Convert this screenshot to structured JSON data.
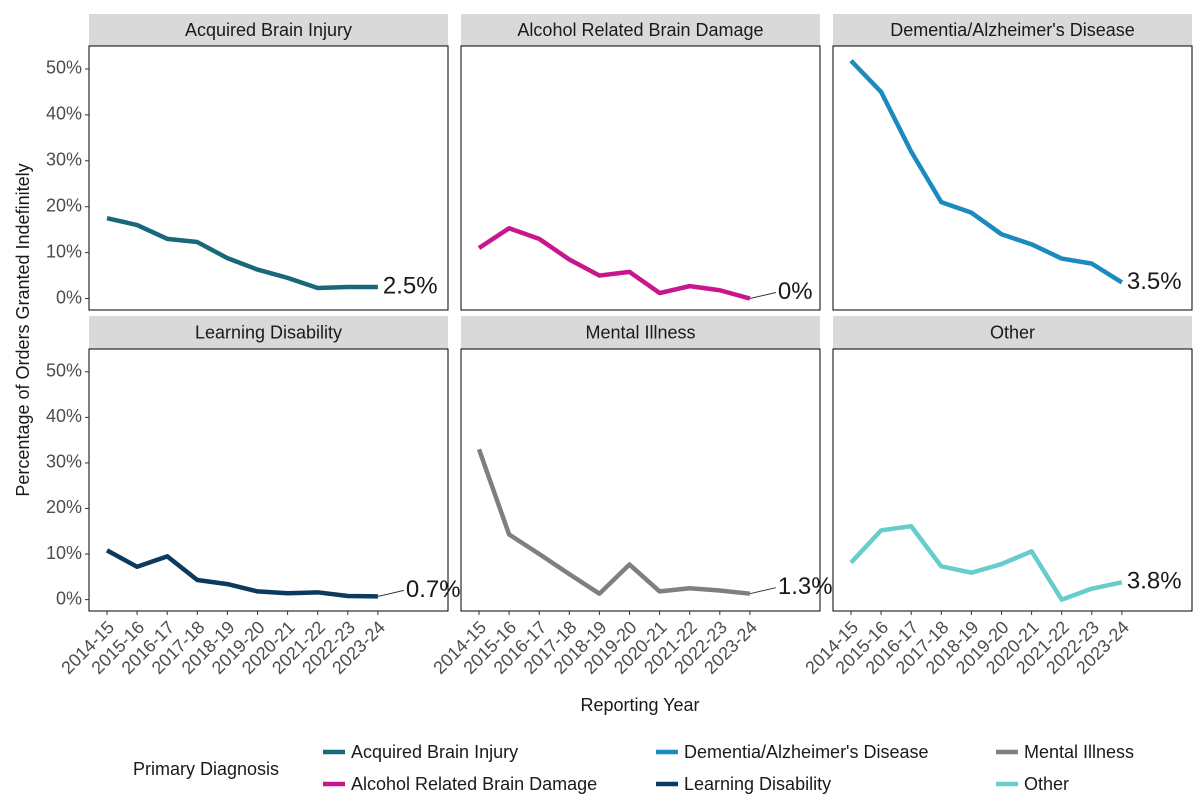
{
  "chart_data": {
    "type": "line",
    "x_label": "Reporting Year",
    "y_label": "Percentage of Orders Granted Indefinitely",
    "legend_title": "Primary Diagnosis",
    "categories": [
      "2014-15",
      "2015-16",
      "2016-17",
      "2017-18",
      "2018-19",
      "2019-20",
      "2020-21",
      "2021-22",
      "2022-23",
      "2023-24"
    ],
    "ylim": [
      -2.5,
      55
    ],
    "yticks": [
      {
        "value": 0,
        "label": "0%"
      },
      {
        "value": 10,
        "label": "10%"
      },
      {
        "value": 20,
        "label": "20%"
      },
      {
        "value": 30,
        "label": "30%"
      },
      {
        "value": 40,
        "label": "40%"
      },
      {
        "value": 50,
        "label": "50%"
      }
    ],
    "series": [
      {
        "name": "Acquired Brain Injury",
        "color": "#17697a",
        "values": [
          17.5,
          16,
          13,
          12.3,
          8.8,
          6.3,
          4.5,
          2.3,
          2.5,
          2.5
        ],
        "end_label": "2.5%"
      },
      {
        "name": "Alcohol Related Brain Damage",
        "color": "#c8168c",
        "values": [
          11,
          15.3,
          13,
          8.5,
          5,
          5.8,
          1.2,
          2.7,
          1.8,
          0
        ],
        "end_label": "0%"
      },
      {
        "name": "Dementia/Alzheimer's Disease",
        "color": "#1a8abf",
        "values": [
          51.8,
          45,
          32,
          21,
          18.7,
          14,
          11.8,
          8.7,
          7.6,
          3.5
        ],
        "end_label": "3.5%"
      },
      {
        "name": "Learning Disability",
        "color": "#0c3a5e",
        "values": [
          10.8,
          7.2,
          9.5,
          4.3,
          3.4,
          1.8,
          1.4,
          1.6,
          0.8,
          0.7
        ],
        "end_label": "0.7%"
      },
      {
        "name": "Mental Illness",
        "color": "#7f7f7f",
        "values": [
          33,
          14.3,
          10,
          5.6,
          1.3,
          7.7,
          1.8,
          2.5,
          2,
          1.3
        ],
        "end_label": "1.3%"
      },
      {
        "name": "Other",
        "color": "#66cccc",
        "values": [
          8.1,
          15.2,
          16.1,
          7.3,
          5.9,
          7.8,
          10.6,
          0,
          2.4,
          3.8
        ],
        "end_label": "3.8%"
      }
    ]
  }
}
